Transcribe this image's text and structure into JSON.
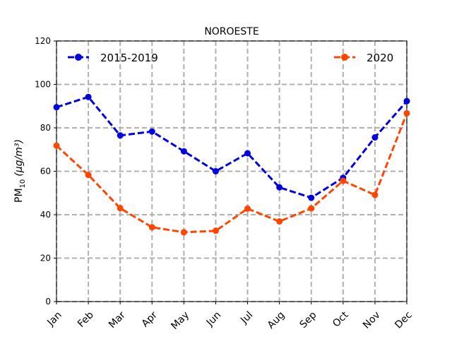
{
  "chart_data": {
    "type": "line",
    "title": "NOROESTE",
    "ylabel_main": "PM",
    "ylabel_sub": "10",
    "ylabel_unit": "(μg/m³)",
    "xlabel": "",
    "categories": [
      "Jan",
      "Feb",
      "Mar",
      "Apr",
      "May",
      "Jun",
      "Jul",
      "Aug",
      "Sep",
      "Oct",
      "Nov",
      "Dec"
    ],
    "ylim": [
      0,
      120
    ],
    "yticks": [
      0,
      20,
      40,
      60,
      80,
      100,
      120
    ],
    "grid": true,
    "legend_placement": "top",
    "series": [
      {
        "name": "2015-2019",
        "color": "#0000e0",
        "values": [
          89.5,
          94.2,
          76.5,
          78.3,
          69.2,
          60.0,
          68.3,
          52.6,
          47.8,
          57.0,
          75.6,
          92.3
        ]
      },
      {
        "name": "2020",
        "color": "#ff4500",
        "values": [
          71.8,
          58.3,
          43.0,
          34.2,
          31.9,
          32.6,
          42.8,
          36.9,
          42.9,
          55.6,
          49.1,
          86.7
        ]
      }
    ]
  }
}
